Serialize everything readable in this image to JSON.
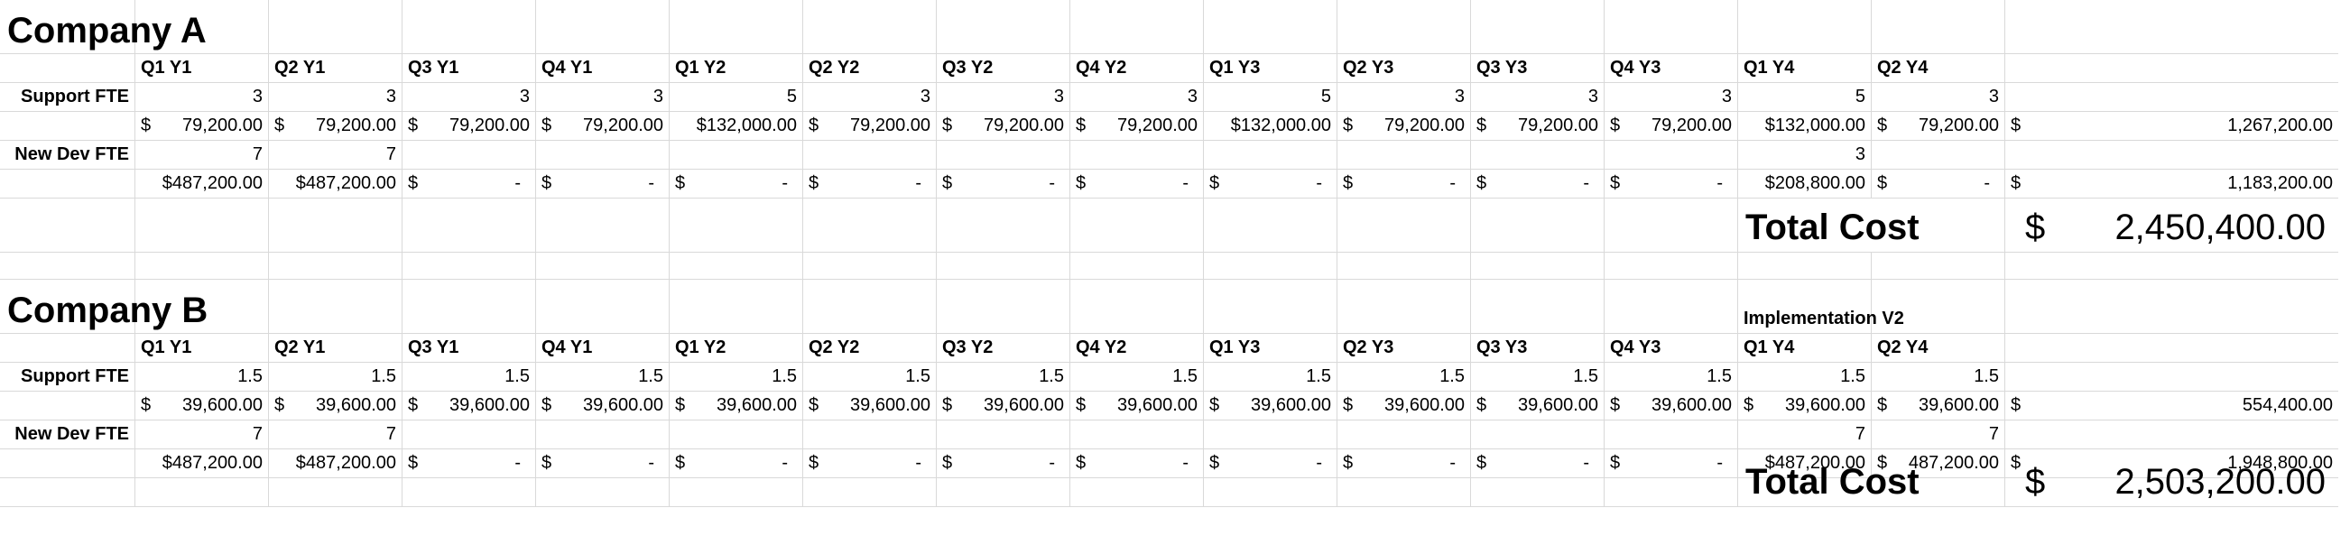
{
  "sections": [
    {
      "title": "Company A",
      "quarters": [
        "Q1 Y1",
        "Q2 Y1",
        "Q3 Y1",
        "Q4 Y1",
        "Q1 Y2",
        "Q2 Y2",
        "Q3 Y2",
        "Q4 Y2",
        "Q1 Y3",
        "Q2 Y3",
        "Q3 Y3",
        "Q4 Y3",
        "Q1 Y4",
        "Q2 Y4"
      ],
      "support_label": "Support FTE",
      "support_fte": [
        "3",
        "3",
        "3",
        "3",
        "5",
        "3",
        "3",
        "3",
        "5",
        "3",
        "3",
        "3",
        "5",
        "3"
      ],
      "support_cost": [
        [
          "$",
          "79,200.00"
        ],
        [
          "$",
          "79,200.00"
        ],
        [
          "$",
          "79,200.00"
        ],
        [
          "$",
          "79,200.00"
        ],
        [
          "",
          "$132,000.00"
        ],
        [
          "$",
          "79,200.00"
        ],
        [
          "$",
          "79,200.00"
        ],
        [
          "$",
          "79,200.00"
        ],
        [
          "",
          "$132,000.00"
        ],
        [
          "$",
          "79,200.00"
        ],
        [
          "$",
          "79,200.00"
        ],
        [
          "$",
          "79,200.00"
        ],
        [
          "",
          "$132,000.00"
        ],
        [
          "$",
          "79,200.00"
        ]
      ],
      "support_total": [
        "$",
        "1,267,200.00"
      ],
      "newdev_label": "New Dev FTE",
      "newdev_fte": [
        "7",
        "7",
        "",
        "",
        "",
        "",
        "",
        "",
        "",
        "",
        "",
        "",
        "3",
        ""
      ],
      "newdev_cost": [
        [
          "",
          "$487,200.00"
        ],
        [
          "",
          "$487,200.00"
        ],
        [
          "$",
          "-"
        ],
        [
          "$",
          "-"
        ],
        [
          "$",
          "-"
        ],
        [
          "$",
          "-"
        ],
        [
          "$",
          "-"
        ],
        [
          "$",
          "-"
        ],
        [
          "$",
          "-"
        ],
        [
          "$",
          "-"
        ],
        [
          "$",
          "-"
        ],
        [
          "$",
          "-"
        ],
        [
          "",
          "$208,800.00"
        ],
        [
          "$",
          "-"
        ]
      ],
      "newdev_total": [
        "$",
        "1,183,200.00"
      ],
      "total_label": "Total Cost",
      "total_value": [
        "$",
        "2,450,400.00"
      ],
      "note": ""
    },
    {
      "title": "Company B",
      "quarters": [
        "Q1 Y1",
        "Q2 Y1",
        "Q3 Y1",
        "Q4 Y1",
        "Q1 Y2",
        "Q2 Y2",
        "Q3 Y2",
        "Q4 Y2",
        "Q1 Y3",
        "Q2 Y3",
        "Q3 Y3",
        "Q4 Y3",
        "Q1 Y4",
        "Q2 Y4"
      ],
      "support_label": "Support FTE",
      "support_fte": [
        "1.5",
        "1.5",
        "1.5",
        "1.5",
        "1.5",
        "1.5",
        "1.5",
        "1.5",
        "1.5",
        "1.5",
        "1.5",
        "1.5",
        "1.5",
        "1.5"
      ],
      "support_cost": [
        [
          "$",
          "39,600.00"
        ],
        [
          "$",
          "39,600.00"
        ],
        [
          "$",
          "39,600.00"
        ],
        [
          "$",
          "39,600.00"
        ],
        [
          "$",
          "39,600.00"
        ],
        [
          "$",
          "39,600.00"
        ],
        [
          "$",
          "39,600.00"
        ],
        [
          "$",
          "39,600.00"
        ],
        [
          "$",
          "39,600.00"
        ],
        [
          "$",
          "39,600.00"
        ],
        [
          "$",
          "39,600.00"
        ],
        [
          "$",
          "39,600.00"
        ],
        [
          "$",
          "39,600.00"
        ],
        [
          "$",
          "39,600.00"
        ]
      ],
      "support_total": [
        "$",
        "554,400.00"
      ],
      "newdev_label": "New Dev FTE",
      "newdev_fte": [
        "7",
        "7",
        "",
        "",
        "",
        "",
        "",
        "",
        "",
        "",
        "",
        "",
        "7",
        "7"
      ],
      "newdev_cost": [
        [
          "",
          "$487,200.00"
        ],
        [
          "",
          "$487,200.00"
        ],
        [
          "$",
          "-"
        ],
        [
          "$",
          "-"
        ],
        [
          "$",
          "-"
        ],
        [
          "$",
          "-"
        ],
        [
          "$",
          "-"
        ],
        [
          "$",
          "-"
        ],
        [
          "$",
          "-"
        ],
        [
          "$",
          "-"
        ],
        [
          "$",
          "-"
        ],
        [
          "$",
          "-"
        ],
        [
          "",
          "$487,200.00"
        ],
        [
          "$",
          "487,200.00"
        ]
      ],
      "newdev_total": [
        "$",
        "1,948,800.00"
      ],
      "total_label": "Total Cost",
      "total_value": [
        "$",
        "2,503,200.00"
      ],
      "note": "Implementation V2"
    }
  ]
}
